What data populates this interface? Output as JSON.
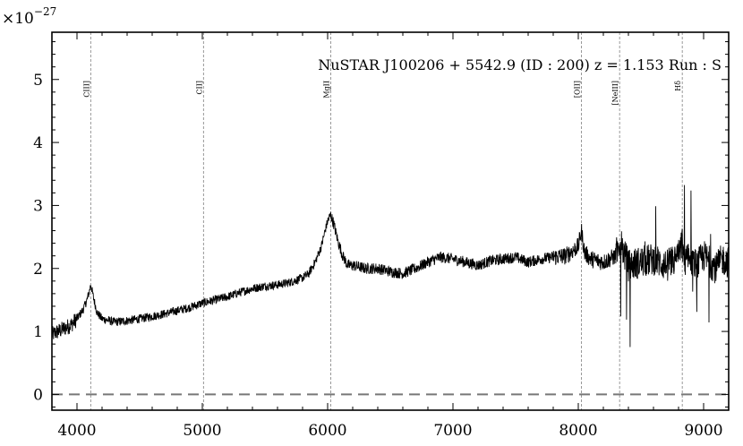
{
  "chart_data": {
    "type": "line",
    "title": "NuSTAR J100206 + 5542.9 (ID : 200)   z = 1.153   Run : S",
    "xlabel": "",
    "ylabel": "",
    "y_multiplier": "×10",
    "y_multiplier_exp": "−27",
    "xlim": [
      3800,
      9200
    ],
    "ylim": [
      -0.25,
      5.75
    ],
    "x_ticks": [
      4000,
      5000,
      6000,
      7000,
      8000,
      9000
    ],
    "y_ticks": [
      0,
      1,
      2,
      3,
      4,
      5
    ],
    "grid": false,
    "zero_line": 0,
    "emission_lines": [
      {
        "name": "CIII]",
        "x": 4110
      },
      {
        "name": "CII]",
        "x": 5010
      },
      {
        "name": "MgII",
        "x": 6025
      },
      {
        "name": "[OII]",
        "x": 8025
      },
      {
        "name": "[NeIII]",
        "x": 8330
      },
      {
        "name": "Hδ",
        "x": 8830
      }
    ],
    "series": [
      {
        "x": [
          3800,
          3850,
          3900,
          3950,
          4000,
          4050,
          4080,
          4100,
          4110,
          4130,
          4160,
          4200,
          4300,
          4400,
          4500,
          4600,
          4700,
          4800,
          4900,
          5000,
          5100,
          5200,
          5300,
          5400,
          5500,
          5600,
          5700,
          5800,
          5850,
          5900,
          5950,
          5980,
          6000,
          6025,
          6050,
          6080,
          6120,
          6160,
          6200,
          6300,
          6400,
          6500,
          6600,
          6700,
          6800,
          6900,
          7000,
          7100,
          7200,
          7300,
          7400,
          7500,
          7600,
          7700,
          7800,
          7900,
          8000,
          8025,
          8050,
          8100,
          8200,
          8300,
          8330,
          8400,
          8500,
          8600,
          8700,
          8750,
          8800,
          8830,
          8850,
          8880,
          8900,
          8950,
          9000,
          9050,
          9100,
          9150,
          9200
        ],
        "y": [
          0.95,
          1.0,
          1.05,
          1.1,
          1.2,
          1.35,
          1.5,
          1.65,
          1.75,
          1.55,
          1.3,
          1.2,
          1.15,
          1.17,
          1.2,
          1.24,
          1.28,
          1.33,
          1.38,
          1.45,
          1.5,
          1.55,
          1.62,
          1.68,
          1.72,
          1.74,
          1.78,
          1.85,
          1.92,
          2.1,
          2.35,
          2.6,
          2.75,
          2.85,
          2.7,
          2.45,
          2.2,
          2.05,
          2.05,
          2.0,
          2.0,
          1.95,
          1.92,
          2.0,
          2.1,
          2.18,
          2.15,
          2.1,
          2.05,
          2.12,
          2.15,
          2.18,
          2.1,
          2.15,
          2.18,
          2.2,
          2.35,
          2.6,
          2.25,
          2.15,
          2.1,
          2.2,
          2.45,
          2.05,
          2.1,
          2.15,
          2.05,
          2.1,
          2.2,
          2.4,
          2.0,
          2.3,
          2.1,
          2.05,
          2.2,
          2.1,
          2.0,
          2.15,
          2.1
        ]
      }
    ]
  }
}
